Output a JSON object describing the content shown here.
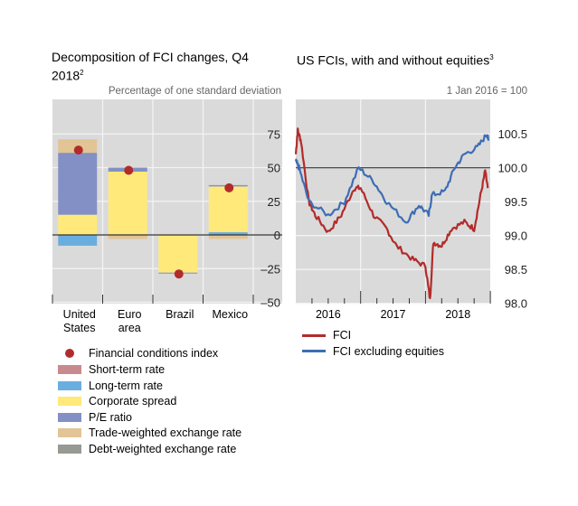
{
  "chart_data": [
    {
      "type": "bar",
      "stacked": true,
      "title": "Decomposition of FCI changes, Q4 2018",
      "title_note": "2",
      "ylabel": "Percentage of one standard deviation",
      "ylim": [
        -50,
        100
      ],
      "yticks": [
        75,
        50,
        25,
        0,
        -25,
        -50
      ],
      "ytick_labels": [
        "75",
        "50",
        "25",
        "0",
        "–25",
        "–50"
      ],
      "categories": [
        "United States",
        "Euro area",
        "Brazil",
        "Mexico"
      ],
      "category_lines": [
        [
          "United",
          "States"
        ],
        [
          "Euro",
          "area"
        ],
        [
          "Brazil",
          ""
        ],
        [
          "Mexico",
          ""
        ]
      ],
      "series": [
        {
          "name": "Short-term rate",
          "color": "#c98a8f",
          "values": [
            0,
            0,
            0,
            0
          ]
        },
        {
          "name": "Long-term rate",
          "color": "#6aaee0",
          "values": [
            -8,
            0,
            0,
            2
          ]
        },
        {
          "name": "Corporate spread",
          "color": "#ffe97a",
          "values": [
            15,
            47,
            -28,
            34
          ]
        },
        {
          "name": "P/E ratio",
          "color": "#8390c5",
          "values": [
            46,
            3,
            -0.7,
            1
          ]
        },
        {
          "name": "Trade-weighted exchange rate",
          "color": "#e2c495",
          "values": [
            10,
            -3,
            0,
            -3
          ]
        },
        {
          "name": "Debt-weighted exchange rate",
          "color": "#959b93",
          "values": [
            0,
            0,
            0,
            0
          ]
        }
      ],
      "fci": {
        "name": "Financial conditions index",
        "color": "#b22b2b",
        "values": [
          63,
          48,
          -29,
          35
        ]
      },
      "grid": true
    },
    {
      "type": "line",
      "title": "US FCIs, with and without equities",
      "title_note": "3",
      "ylabel": "1 Jan 2016 = 100",
      "ylim": [
        98,
        100.75
      ],
      "yticks": [
        100.5,
        100.0,
        99.5,
        99.0,
        98.5,
        98.0
      ],
      "ytick_labels": [
        "100.5",
        "100.0",
        "99.5",
        "99.0",
        "98.5",
        "98.0"
      ],
      "xticks": [
        "2016",
        "2017",
        "2018"
      ],
      "reference_line": 100,
      "series": [
        {
          "name": "FCI",
          "color": "#b22b2b",
          "x": [
            2016.0,
            2016.03,
            2016.08,
            2016.2,
            2016.3,
            2016.5,
            2016.7,
            2016.9,
            2017.0,
            2017.2,
            2017.4,
            2017.55,
            2017.8,
            2018.0,
            2018.07,
            2018.12,
            2018.25,
            2018.4,
            2018.6,
            2018.75,
            2018.85,
            2018.92,
            2018.96
          ],
          "y": [
            100.2,
            100.55,
            100.4,
            99.5,
            99.3,
            99.05,
            99.3,
            99.7,
            99.7,
            99.3,
            99.1,
            98.85,
            98.65,
            98.55,
            98.05,
            98.9,
            98.85,
            99.1,
            99.2,
            99.1,
            99.6,
            99.95,
            99.7
          ]
        },
        {
          "name": "FCI excluding equities",
          "color": "#3d6db5",
          "x": [
            2016.0,
            2016.05,
            2016.2,
            2016.5,
            2016.75,
            2016.97,
            2017.2,
            2017.4,
            2017.7,
            2017.9,
            2018.05,
            2018.1,
            2018.3,
            2018.45,
            2018.6,
            2018.8,
            2018.95,
            2018.97
          ],
          "y": [
            100.1,
            100.0,
            99.5,
            99.3,
            99.5,
            100.0,
            99.8,
            99.5,
            99.2,
            99.45,
            99.3,
            99.6,
            99.65,
            100.0,
            100.2,
            100.3,
            100.5,
            100.4
          ]
        }
      ],
      "grid": true
    }
  ]
}
